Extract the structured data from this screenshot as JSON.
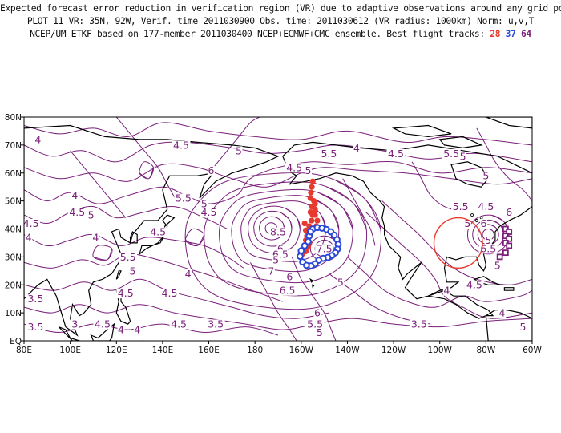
{
  "title": {
    "line1": "Expected forecast error reduction in verification region (VR) due to adaptive observations around any grid point.",
    "line2": "PLOT 11 VR: 35N, 92W, Verif. time 2011030900 Obs. time: 2011030612 (VR radius: 1000km) Norm: u,v,T",
    "line3_prefix": "NCEP/UM ETKF based on 177-member 2011030400 NCEP+ECMWF+CMC ensemble. Best flight tracks:",
    "flight_tracks": [
      {
        "label": "28",
        "color": "#e8392f"
      },
      {
        "label": "37",
        "color": "#2a48d6"
      },
      {
        "label": "64",
        "color": "#7a1f7a"
      }
    ]
  },
  "colors": {
    "contour": "#7a1f7a",
    "coast": "#000000",
    "track_red": "#e8392f",
    "track_blue": "#2a48d6",
    "vr_circle": "#e8392f"
  },
  "map": {
    "lon_labels": [
      "80E",
      "100E",
      "120E",
      "140E",
      "160E",
      "180",
      "160W",
      "140W",
      "120W",
      "100W",
      "80W",
      "60W"
    ],
    "lat_labels": [
      "EQ",
      "10N",
      "20N",
      "30N",
      "40N",
      "50N",
      "60N",
      "70N",
      "80N"
    ]
  },
  "contour_labels": [
    {
      "v": "4.5",
      "lon": 148,
      "lat": 69
    },
    {
      "v": "4",
      "lon": 86,
      "lat": 71
    },
    {
      "v": "5",
      "lon": 173,
      "lat": 67
    },
    {
      "v": "6",
      "lon": 161,
      "lat": 60
    },
    {
      "v": "5.5",
      "lon": 212,
      "lat": 66
    },
    {
      "v": "4.5",
      "lon": 197,
      "lat": 61
    },
    {
      "v": "5",
      "lon": 203,
      "lat": 60
    },
    {
      "v": "4.5",
      "lon": 241,
      "lat": 66
    },
    {
      "v": "4",
      "lon": 224,
      "lat": 68
    },
    {
      "v": "5",
      "lon": 270,
      "lat": 65
    },
    {
      "v": "5.5",
      "lon": 265,
      "lat": 66
    },
    {
      "v": "5",
      "lon": 280,
      "lat": 58
    },
    {
      "v": "5.5",
      "lon": 149,
      "lat": 50
    },
    {
      "v": "5",
      "lon": 158,
      "lat": 48
    },
    {
      "v": "4.5",
      "lon": 160,
      "lat": 45
    },
    {
      "v": "4",
      "lon": 102,
      "lat": 51
    },
    {
      "v": "4.5",
      "lon": 103,
      "lat": 45
    },
    {
      "v": "5",
      "lon": 109,
      "lat": 44
    },
    {
      "v": "4",
      "lon": 82,
      "lat": 36
    },
    {
      "v": "4.5",
      "lon": 83,
      "lat": 41
    },
    {
      "v": "4.5",
      "lon": 138,
      "lat": 38
    },
    {
      "v": "4",
      "lon": 111,
      "lat": 36
    },
    {
      "v": "5.5",
      "lon": 125,
      "lat": 29
    },
    {
      "v": "5",
      "lon": 127,
      "lat": 24
    },
    {
      "v": "8.5",
      "lon": 190,
      "lat": 38
    },
    {
      "v": "6",
      "lon": 191,
      "lat": 32
    },
    {
      "v": "6.5",
      "lon": 191,
      "lat": 30
    },
    {
      "v": "5",
      "lon": 189,
      "lat": 28
    },
    {
      "v": "7",
      "lon": 187,
      "lat": 24
    },
    {
      "v": "7.5",
      "lon": 210,
      "lat": 32
    },
    {
      "v": "6",
      "lon": 195,
      "lat": 22
    },
    {
      "v": "5",
      "lon": 217,
      "lat": 20
    },
    {
      "v": "6.5",
      "lon": 194,
      "lat": 17
    },
    {
      "v": "4",
      "lon": 151,
      "lat": 23
    },
    {
      "v": "4.5",
      "lon": 124,
      "lat": 16
    },
    {
      "v": "4.5",
      "lon": 143,
      "lat": 16
    },
    {
      "v": "4",
      "lon": 86,
      "lat": 4
    },
    {
      "v": "3.5",
      "lon": 85,
      "lat": 14
    },
    {
      "v": "3.5",
      "lon": 85,
      "lat": 4
    },
    {
      "v": "4.5",
      "lon": 114,
      "lat": 5
    },
    {
      "v": "3",
      "lon": 102,
      "lat": 5
    },
    {
      "v": "4",
      "lon": 122,
      "lat": 3
    },
    {
      "v": "4.5",
      "lon": 147,
      "lat": 5
    },
    {
      "v": "4",
      "lon": 129,
      "lat": 3
    },
    {
      "v": "3.5",
      "lon": 163,
      "lat": 5
    },
    {
      "v": "6",
      "lon": 207,
      "lat": 9
    },
    {
      "v": "5.5",
      "lon": 206,
      "lat": 5
    },
    {
      "v": "5",
      "lon": 208,
      "lat": 2
    },
    {
      "v": "3.5",
      "lon": 251,
      "lat": 5
    },
    {
      "v": "5",
      "lon": 272,
      "lat": 41
    },
    {
      "v": "5.5",
      "lon": 269,
      "lat": 47
    },
    {
      "v": "5",
      "lon": 281,
      "lat": 35
    },
    {
      "v": "6",
      "lon": 279,
      "lat": 41
    },
    {
      "v": "6.5",
      "lon": 281,
      "lat": 32
    },
    {
      "v": "6",
      "lon": 290,
      "lat": 45
    },
    {
      "v": "4.5",
      "lon": 280,
      "lat": 47
    },
    {
      "v": "4.5",
      "lon": 275,
      "lat": 19
    },
    {
      "v": "4",
      "lon": 263,
      "lat": 17
    },
    {
      "v": "5",
      "lon": 285,
      "lat": 26
    },
    {
      "v": "4",
      "lon": 287,
      "lat": 9
    },
    {
      "v": "5",
      "lon": 296,
      "lat": 4
    }
  ],
  "tracks": {
    "red": [
      [
        205,
        57
      ],
      [
        204.6,
        55
      ],
      [
        204.2,
        53
      ],
      [
        204,
        51
      ],
      [
        205.5,
        50
      ],
      [
        204.5,
        48
      ],
      [
        204,
        46
      ],
      [
        205,
        45
      ],
      [
        204.5,
        43
      ],
      [
        203.5,
        41
      ],
      [
        202,
        39.5
      ],
      [
        202.5,
        37.5
      ],
      [
        202,
        36
      ],
      [
        203.5,
        35
      ],
      [
        203,
        33.5
      ],
      [
        202,
        32
      ],
      [
        200.5,
        31
      ],
      [
        201.5,
        42
      ],
      [
        206,
        49
      ],
      [
        206,
        47
      ],
      [
        206,
        45
      ],
      [
        207,
        43
      ],
      [
        206.5,
        41
      ]
    ],
    "blue": [
      [
        205,
        40
      ],
      [
        207,
        40.5
      ],
      [
        209,
        40.3
      ],
      [
        211,
        39.8
      ],
      [
        212.8,
        39
      ],
      [
        214.3,
        37.8
      ],
      [
        215.5,
        36.2
      ],
      [
        216,
        34.5
      ],
      [
        215.7,
        32.8
      ],
      [
        214.8,
        31.5
      ],
      [
        213.3,
        30.5
      ],
      [
        211.5,
        29.8
      ],
      [
        209.5,
        29.5
      ],
      [
        207.6,
        28.8
      ],
      [
        206,
        27.5
      ],
      [
        204.2,
        26.8
      ],
      [
        202.3,
        27
      ],
      [
        200.6,
        28.2
      ],
      [
        199.5,
        30.2
      ],
      [
        200,
        32.2
      ],
      [
        201.5,
        34
      ],
      [
        203,
        35.5
      ],
      [
        203.5,
        37.5
      ],
      [
        204,
        39
      ]
    ],
    "purple_squares": [
      [
        288.5,
        40
      ],
      [
        290,
        39
      ],
      [
        288.5,
        37.5
      ],
      [
        290,
        36.5
      ],
      [
        288.5,
        35
      ],
      [
        290,
        34
      ],
      [
        288.5,
        31.5
      ],
      [
        286,
        30
      ]
    ]
  },
  "vr_center": {
    "lon": 268,
    "lat": 35
  }
}
